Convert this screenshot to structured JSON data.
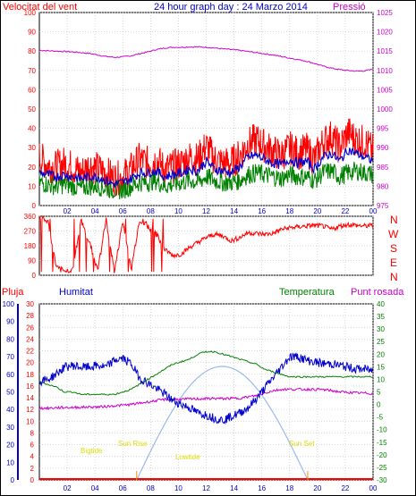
{
  "colors": {
    "frame": "#000000",
    "grid": "#c8c8c8",
    "plot_bg": "#ffffff",
    "red": "#ff0000",
    "blue": "#0000cc",
    "green": "#008000",
    "magenta": "#cc00cc",
    "sun": "#9bb8ee",
    "daylight_orange": "#ff8800",
    "sun_text": "#dddd00"
  },
  "header": {
    "left": "Velocitat del vent",
    "center": "24 hour graph day : 24 Marzo 2014",
    "right": "Pressió"
  },
  "direction_labels": [
    "N",
    "W",
    "S",
    "E",
    "N"
  ],
  "bottom_header": {
    "pluja": "Pluja",
    "humitat": "Humitat",
    "temperatura": "Temperatura",
    "punt_rosada": "Punt rosada"
  },
  "sun_labels": {
    "sunrise": "Sun Rise",
    "sunset": "Sun Set",
    "bigtide": "Bigtide",
    "lowtide": "Lowtide"
  },
  "chart_data": [
    {
      "type": "line",
      "name": "wind-pressure",
      "x_ticks": [
        "02",
        "04",
        "06",
        "08",
        "10",
        "12",
        "14",
        "16",
        "18",
        "20",
        "22",
        "00"
      ],
      "y_left_ticks": [
        0,
        10,
        20,
        30,
        40,
        50,
        60,
        70,
        80,
        90,
        100
      ],
      "y_right_ticks": [
        975,
        980,
        985,
        990,
        995,
        1000,
        1005,
        1010,
        1015,
        1020,
        1025
      ],
      "ylim_left": [
        0,
        100
      ],
      "ylim_right": [
        975,
        1025
      ],
      "series": [
        {
          "color": "red",
          "axis": "left",
          "values": [
            25,
            21,
            20,
            22,
            20,
            17,
            21,
            19,
            17,
            14,
            15,
            19,
            24,
            22,
            24,
            19,
            20,
            22,
            25,
            24,
            31,
            24,
            22,
            22,
            26,
            32,
            34,
            31,
            28,
            26,
            30,
            27,
            29,
            24,
            33,
            36,
            30,
            38,
            34,
            33,
            28
          ]
        },
        {
          "color": "blue",
          "axis": "left",
          "values": [
            17,
            16,
            15,
            16,
            15,
            14,
            15,
            15,
            13,
            11,
            12,
            14,
            17,
            17,
            18,
            15,
            16,
            17,
            19,
            18,
            23,
            19,
            18,
            17,
            20,
            25,
            26,
            24,
            22,
            21,
            24,
            22,
            23,
            19,
            25,
            27,
            23,
            29,
            27,
            25,
            23
          ]
        },
        {
          "color": "green",
          "axis": "left",
          "values": [
            12,
            11,
            10,
            11,
            10,
            9,
            10,
            10,
            9,
            8,
            8,
            10,
            12,
            12,
            13,
            10,
            11,
            12,
            13,
            12,
            15,
            13,
            12,
            12,
            13,
            16,
            17,
            16,
            15,
            14,
            16,
            15,
            15,
            13,
            17,
            18,
            15,
            17,
            18,
            17,
            16
          ]
        },
        {
          "color": "magenta",
          "axis": "right",
          "values": [
            1015.2,
            1015.1,
            1015.0,
            1014.9,
            1014.8,
            1014.6,
            1014.4,
            1014.0,
            1013.6,
            1013.4,
            1013.5,
            1013.8,
            1014.3,
            1014.8,
            1015.4,
            1015.8,
            1016.0,
            1016.0,
            1016.1,
            1016.1,
            1016.0,
            1015.8,
            1015.6,
            1015.4,
            1015.2,
            1014.9,
            1014.6,
            1014.3,
            1014.0,
            1013.6,
            1013.2,
            1012.8,
            1012.4,
            1011.8,
            1011.1,
            1010.6,
            1010.2,
            1010.0,
            1009.8,
            1009.9,
            1010.3
          ]
        }
      ]
    },
    {
      "type": "line",
      "name": "wind-direction",
      "y_ticks": [
        0,
        90,
        180,
        270,
        360
      ],
      "ylim": [
        0,
        360
      ],
      "series": [
        {
          "color": "red",
          "values": [
            350,
            330,
            60,
            20,
            40,
            330,
            200,
            30,
            340,
            20,
            330,
            30,
            340,
            300,
            250,
            160,
            120,
            130,
            170,
            200,
            230,
            250,
            240,
            210,
            230,
            260,
            255,
            250,
            255,
            280,
            290,
            295,
            300,
            305,
            300,
            280,
            300,
            310,
            305,
            300,
            305
          ]
        }
      ]
    },
    {
      "type": "line",
      "name": "humidity-temperature",
      "y_left_ticks": [
        0,
        10,
        20,
        30,
        40,
        50,
        60,
        70,
        80,
        90,
        100
      ],
      "y_pluja_ticks": [
        0,
        2,
        4,
        6,
        8,
        10,
        12,
        14,
        16,
        18,
        20,
        22,
        24,
        26,
        28,
        30
      ],
      "y_right_ticks": [
        -30,
        -25,
        -20,
        -15,
        -10,
        -5,
        0,
        5,
        10,
        15,
        20,
        25,
        30,
        35,
        40
      ],
      "ylim_left": [
        0,
        100
      ],
      "ylim_right": [
        -30,
        40
      ],
      "series": [
        {
          "color": "blue",
          "axis": "left",
          "values": [
            56,
            57,
            60,
            64,
            65,
            64,
            64,
            65,
            64,
            68,
            69,
            66,
            58,
            55,
            52,
            49,
            45,
            43,
            41,
            38,
            37,
            35,
            34,
            36,
            38,
            41,
            46,
            52,
            58,
            64,
            70,
            70,
            68,
            67,
            66,
            66,
            65,
            64,
            63,
            63,
            62
          ]
        },
        {
          "color": "green",
          "axis": "right",
          "values": [
            9,
            8,
            7,
            5,
            5,
            4,
            4,
            4,
            4,
            4,
            5,
            6,
            8,
            10,
            12,
            14,
            16,
            17,
            18,
            20,
            21,
            21,
            20,
            19,
            18,
            17,
            16,
            14,
            13,
            12,
            11,
            11,
            11,
            11,
            11,
            11,
            11,
            11,
            11,
            11,
            11
          ]
        },
        {
          "color": "magenta",
          "axis": "right",
          "values": -1,
          "points": [
            -1.5,
            -1.5,
            -1.3,
            -1.2,
            -1.2,
            -1.1,
            -1.0,
            -1.0,
            -0.8,
            -0.5,
            -0.3,
            0,
            0.5,
            1.0,
            1.5,
            2.0,
            2.0,
            2.0,
            2.2,
            2.2,
            2.3,
            2.4,
            2.3,
            2.4,
            2.5,
            3.0,
            3.5,
            4.5,
            5.5,
            6.0,
            6.0,
            6.0,
            6.0,
            6.0,
            5.9,
            5.5,
            5.0,
            4.8,
            4.6,
            4.5,
            4.3
          ]
        }
      ]
    }
  ]
}
